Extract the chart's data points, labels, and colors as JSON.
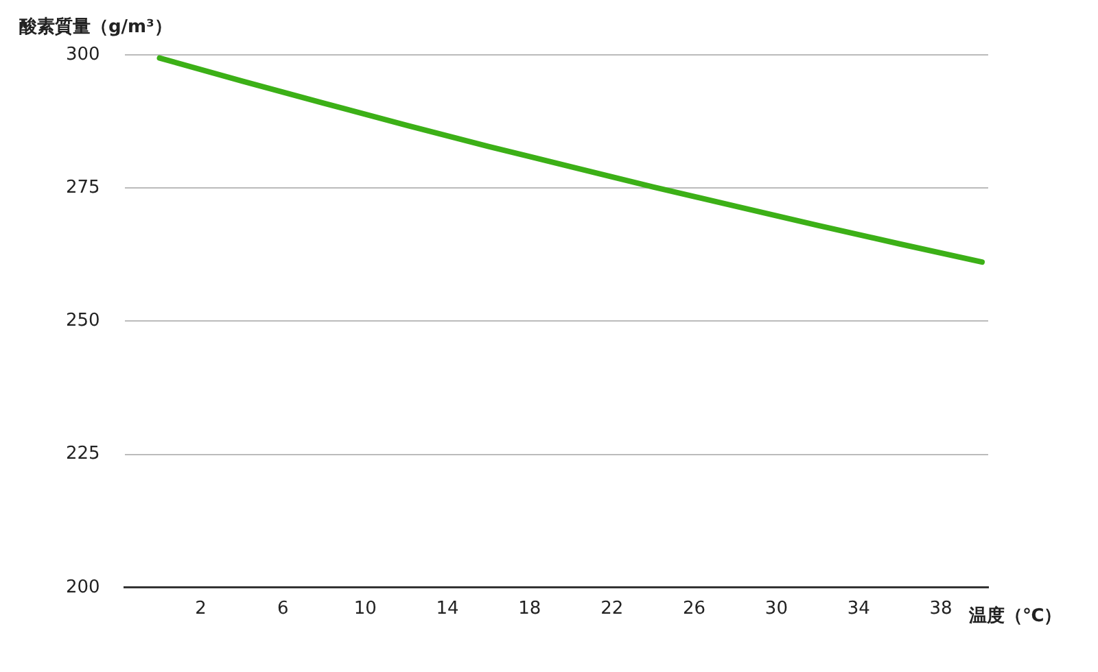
{
  "chart_data": {
    "type": "line",
    "ylabel": "酸素質量（g/m³）",
    "xlabel": "温度（℃）",
    "x": [
      0,
      4,
      8,
      12,
      16,
      20,
      24,
      28,
      32,
      36,
      40
    ],
    "series": [
      {
        "color": "#3cb017",
        "values": [
          299.4,
          295.1,
          290.9,
          286.8,
          282.8,
          279.0,
          275.2,
          271.6,
          268.0,
          264.5,
          261.1
        ]
      }
    ],
    "xlim": [
      -1.7,
      40.3
    ],
    "xticks": [
      2,
      6,
      10,
      14,
      18,
      22,
      26,
      30,
      34,
      38
    ],
    "ylim": [
      200,
      300
    ],
    "yticks": [
      200,
      225,
      250,
      275,
      300
    ],
    "grid": "y",
    "legend": false,
    "marker": "none",
    "line_style": "solid"
  }
}
